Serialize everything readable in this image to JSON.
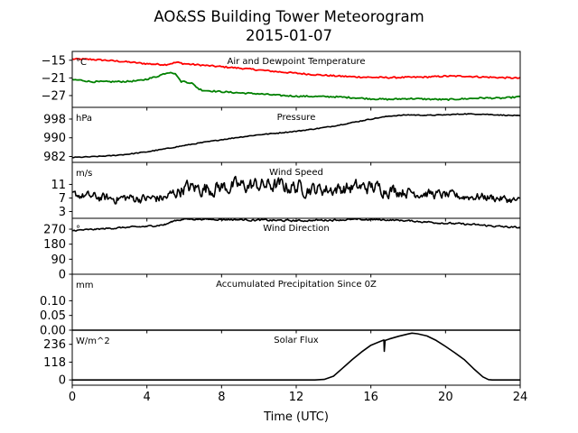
{
  "title_line1": "AO&SS Building Tower Meteorogram",
  "title_line2": "2015-01-07",
  "xlabel": "Time (UTC)",
  "x_ticks": [
    0,
    4,
    8,
    12,
    16,
    20,
    24
  ],
  "xlim": [
    0,
    24
  ],
  "colors": {
    "air": "#ff0000",
    "dewpoint": "#008000",
    "line": "#000000"
  },
  "chart_data": [
    {
      "type": "line",
      "title": "Air and Dewpoint Temperature",
      "unit": "°C",
      "ylim": [
        -31,
        -12
      ],
      "yticks": [
        -15,
        -21,
        -27
      ],
      "series": [
        {
          "color_key": "air",
          "x": [
            0,
            1,
            2,
            3,
            4,
            5,
            5.6,
            6,
            7,
            8,
            9,
            10,
            11,
            12,
            13,
            14,
            15,
            16,
            17,
            18,
            19,
            20,
            21,
            22,
            23,
            24
          ],
          "values": [
            -14.6,
            -14.7,
            -15.1,
            -15.6,
            -16.2,
            -16.5,
            -15.7,
            -16.2,
            -16.7,
            -17.2,
            -17.7,
            -18.3,
            -18.9,
            -19.4,
            -19.9,
            -20.3,
            -20.6,
            -20.8,
            -20.9,
            -20.8,
            -20.7,
            -20.4,
            -20.4,
            -20.7,
            -20.9,
            -21.1
          ]
        },
        {
          "color_key": "dewpoint",
          "x": [
            0,
            0.5,
            1,
            2,
            3,
            3.5,
            4,
            4.5,
            5,
            5.3,
            5.6,
            5.8,
            6,
            6.4,
            6.8,
            7,
            8,
            9,
            10,
            11,
            12,
            13,
            14,
            15,
            16,
            17,
            18,
            19,
            20,
            21,
            22,
            23,
            24
          ],
          "values": [
            -21.6,
            -21.8,
            -22.3,
            -22.3,
            -22.2,
            -22.0,
            -21.4,
            -20.6,
            -19.4,
            -19.0,
            -20.0,
            -22.2,
            -22.2,
            -22.8,
            -24.8,
            -25.2,
            -25.7,
            -26.1,
            -26.4,
            -26.9,
            -27.2,
            -27.3,
            -27.4,
            -27.7,
            -28.1,
            -28.3,
            -28.0,
            -28.2,
            -28.4,
            -28.1,
            -27.8,
            -27.9,
            -27.4
          ]
        }
      ]
    },
    {
      "type": "line",
      "title": "Pressure",
      "unit": "hPa",
      "ylim": [
        979.5,
        1003
      ],
      "yticks": [
        998,
        990,
        982
      ],
      "series": [
        {
          "color_key": "line",
          "x": [
            0,
            1,
            2,
            3,
            4,
            5,
            6,
            7,
            8,
            9,
            10,
            11,
            12,
            13,
            14,
            15,
            16,
            17,
            18,
            19,
            20,
            21,
            22,
            23,
            24
          ],
          "values": [
            981.6,
            981.9,
            982.3,
            983.0,
            984.0,
            985.3,
            986.7,
            988.0,
            989.2,
            990.3,
            991.3,
            992.0,
            992.8,
            993.8,
            995.0,
            996.5,
            998.0,
            999.3,
            999.8,
            999.6,
            999.8,
            1000.2,
            1000.1,
            999.7,
            999.4
          ]
        }
      ]
    },
    {
      "type": "line",
      "title": "Wind Speed",
      "unit": "m/s",
      "ylim": [
        1,
        17.5
      ],
      "yticks": [
        11,
        7,
        3
      ],
      "series": [
        {
          "color_key": "line",
          "x": [
            0,
            1,
            2,
            3,
            4,
            5,
            6,
            7,
            8,
            9,
            10,
            11,
            12,
            13,
            14,
            15,
            16,
            17,
            18,
            19,
            20,
            21,
            22,
            23,
            24
          ],
          "values": [
            8.0,
            7.4,
            6.8,
            7.0,
            6.8,
            7.0,
            10.0,
            9.8,
            10.2,
            10.5,
            10.8,
            10.6,
            10.2,
            9.6,
            9.6,
            10.0,
            10.2,
            9.5,
            8.8,
            8.3,
            7.8,
            7.4,
            7.4,
            6.8,
            6.0
          ],
          "noise": [
            1.2,
            1.5,
            1.6,
            1.6,
            1.6,
            1.8,
            2.4,
            2.6,
            2.6,
            2.6,
            2.6,
            2.6,
            2.6,
            2.3,
            2.3,
            2.4,
            2.4,
            2.2,
            1.8,
            1.6,
            1.5,
            1.4,
            1.4,
            1.3,
            1.2
          ]
        }
      ]
    },
    {
      "type": "line",
      "title": "Wind Direction",
      "unit": "°",
      "ylim": [
        0,
        335
      ],
      "yticks": [
        270,
        180,
        90,
        0
      ],
      "series": [
        {
          "color_key": "line",
          "x": [
            0,
            1,
            2,
            3,
            4,
            5,
            5.5,
            6,
            7,
            8,
            9,
            10,
            11,
            12,
            13,
            14,
            15,
            16,
            17,
            18,
            19,
            20,
            21,
            22,
            23,
            24
          ],
          "values": [
            262,
            267,
            275,
            281,
            286,
            298,
            322,
            330,
            329,
            328,
            327,
            324,
            322,
            320,
            323,
            325,
            327,
            327,
            325,
            320,
            313,
            306,
            300,
            293,
            285,
            278
          ],
          "noise": [
            5,
            5,
            5,
            5,
            5,
            6,
            6,
            5,
            4,
            5,
            6,
            7,
            7,
            6,
            6,
            6,
            6,
            5,
            5,
            5,
            6,
            6,
            6,
            6,
            6,
            6
          ]
        }
      ]
    },
    {
      "type": "line",
      "title": "Accumulated Precipitation Since 0Z",
      "unit": "mm",
      "ylim": [
        0,
        0.19
      ],
      "yticks": [
        0.1,
        0.05,
        0.0
      ],
      "series": [
        {
          "color_key": "line",
          "x": [
            0,
            24
          ],
          "values": [
            0,
            0
          ]
        }
      ]
    },
    {
      "type": "line",
      "title": "Solar Flux",
      "unit": "W/m^2",
      "ylim": [
        -35,
        330
      ],
      "yticks": [
        236,
        118,
        0
      ],
      "series": [
        {
          "color_key": "line",
          "x": [
            0,
            13,
            13.5,
            14,
            14.5,
            15,
            15.5,
            16,
            16.5,
            16.7,
            16.72,
            16.76,
            17,
            17.5,
            18,
            18.2,
            18.5,
            19,
            19.5,
            20,
            20.5,
            21,
            21.5,
            22,
            22.3,
            22.5,
            23,
            24
          ],
          "values": [
            0,
            0,
            3,
            25,
            80,
            135,
            185,
            230,
            255,
            265,
            190,
            262,
            272,
            290,
            305,
            310,
            306,
            292,
            262,
            222,
            180,
            135,
            75,
            20,
            2,
            0,
            0,
            0
          ]
        }
      ]
    }
  ]
}
